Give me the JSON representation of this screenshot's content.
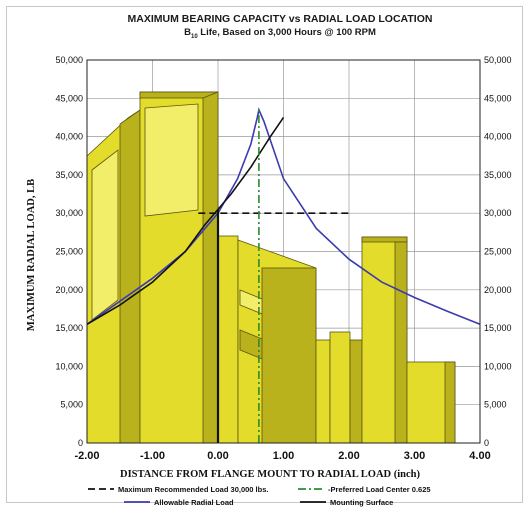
{
  "chart_data": {
    "type": "line",
    "title": "MAXIMUM BEARING CAPACITY vs RADIAL LOAD LOCATION",
    "subtitle_prefix": "B",
    "subtitle_subscript": "10",
    "subtitle_rest": " Life, Based on 3,000 Hours @ 100 RPM",
    "xlabel": "DISTANCE FROM FLANGE MOUNT TO RADIAL LOAD (inch)",
    "ylabel": "MAXIMUM RADIAL LOAD, LB",
    "xlim": [
      -2,
      4
    ],
    "ylim": [
      0,
      50000
    ],
    "grid": true,
    "x_ticks": [
      -2,
      -1,
      0,
      1,
      2,
      3,
      4
    ],
    "x_tick_labels": [
      "-2.00",
      "-1.00",
      "0.00",
      "1.00",
      "2.00",
      "3.00",
      "4.00"
    ],
    "y_ticks": [
      0,
      5000,
      10000,
      15000,
      20000,
      25000,
      30000,
      35000,
      40000,
      45000,
      50000
    ],
    "y_tick_labels": [
      "0",
      "5,000",
      "10,000",
      "15,000",
      "20,000",
      "25,000",
      "30,000",
      "35,000",
      "40,000",
      "45,000",
      "50,000"
    ],
    "series": [
      {
        "name": "Allowable Radial Load",
        "color": "#3b3bb0",
        "style": "solid",
        "x": [
          -2.0,
          -1.5,
          -1.0,
          -0.5,
          0.0,
          0.3,
          0.5,
          0.6,
          0.625,
          0.7,
          1.0,
          1.5,
          2.0,
          2.5,
          3.0,
          3.5,
          4.0
        ],
        "y": [
          15500,
          18500,
          21500,
          25000,
          30000,
          34500,
          39000,
          42500,
          43500,
          42000,
          34500,
          28000,
          24000,
          21000,
          19000,
          17200,
          15500
        ]
      },
      {
        "name": "",
        "color": "#111111",
        "style": "solid",
        "x": [
          -2.0,
          -1.5,
          -1.0,
          -0.5,
          -0.2,
          0.0,
          0.2,
          0.5,
          0.8,
          1.0
        ],
        "y": [
          15500,
          18000,
          21000,
          25000,
          28500,
          30500,
          32500,
          36000,
          40000,
          42500
        ]
      },
      {
        "name": "Maximum Recommended Load 30,000 lbs.",
        "color": "#111111",
        "style": "dashed",
        "x": [
          -0.3,
          2.0
        ],
        "y": [
          30000,
          30000
        ]
      },
      {
        "name": "Preferred Load Center 0.625",
        "color": "#2e8b2e",
        "style": "dashdot",
        "x": [
          0.625,
          0.625
        ],
        "y": [
          0,
          43500
        ]
      },
      {
        "name": "Mounting Surface",
        "color": "#111111",
        "style": "solid",
        "x": [
          0,
          0
        ],
        "y": [
          0,
          30500
        ]
      }
    ],
    "legend": [
      {
        "label": "Maximum Recommended Load 30,000 lbs.",
        "color": "#111111",
        "style": "dashed"
      },
      {
        "label": "-Preferred Load Center 0.625",
        "color": "#2e8b2e",
        "style": "dashdot"
      },
      {
        "label": "Allowable Radial Load",
        "color": "#3b3bb0",
        "style": "solid"
      },
      {
        "label": "Mounting Surface",
        "color": "#111111",
        "style": "solid"
      }
    ],
    "legend_position": "bottom",
    "colors": {
      "shaft_fill": "#e4dc2a",
      "shaft_shade": "#b9b21c",
      "shaft_light": "#f3ee6a",
      "shaft_edge": "#5a5410",
      "grid": "#9a9a9a"
    }
  }
}
